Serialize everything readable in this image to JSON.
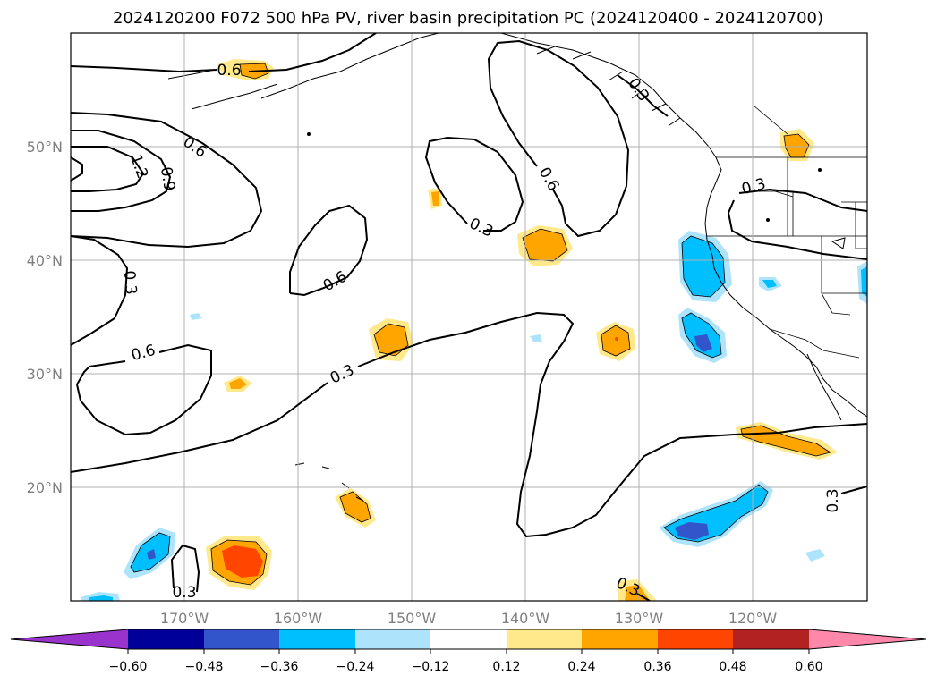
{
  "title": "2024120200 F072 500 hPa PV, river basin precipitation PC (2024120400 - 2024120700)",
  "longitude_labels": [
    "170°W",
    "160°W",
    "150°W",
    "140°W",
    "130°W",
    "120°W"
  ],
  "latitude_labels": [
    "50°N",
    "40°N",
    "30°N",
    "20°N"
  ],
  "contour_labels": {
    "a": "0.6",
    "b": "0.6",
    "c": "1.2",
    "d": "0.9",
    "e": "0.3",
    "f": "0.6",
    "g": "0.3",
    "h": "0.6",
    "i": "0.3",
    "j": "0.6",
    "k": "0.3",
    "l": "0.3",
    "m": "0.3",
    "n": "0.3",
    "o": "0.3"
  },
  "colorbar": {
    "tick_labels": [
      "−0.60",
      "−0.48",
      "−0.36",
      "−0.24",
      "−0.12",
      "0.12",
      "0.24",
      "0.36",
      "0.48",
      "0.60"
    ],
    "colors": [
      "#9933cc",
      "#000099",
      "#3355cc",
      "#00bfff",
      "#aee4fb",
      "#ffffff",
      "#ffe98a",
      "#ffa500",
      "#ff4500",
      "#b22222",
      "#ff88aa"
    ]
  },
  "map_extent": {
    "lon_min": -180,
    "lon_max": -110,
    "lat_min": 10,
    "lat_max": 60
  }
}
